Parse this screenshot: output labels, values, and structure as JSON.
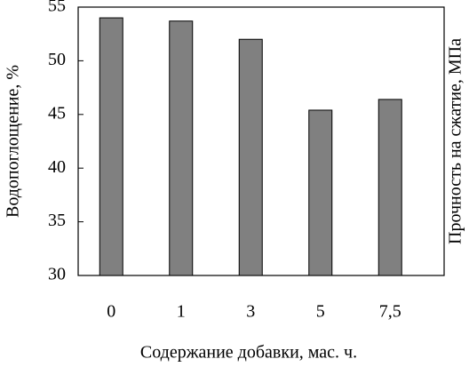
{
  "chart_data": {
    "type": "bar",
    "y_label": "Водопоглощение, %",
    "y2_label": "Прочность на сжатие, МПа",
    "x_label": "Содержание добавки, мас. ч.",
    "categories": [
      "0",
      "1",
      "3",
      "5",
      "7,5"
    ],
    "values": [
      54.0,
      53.7,
      52.0,
      45.4,
      46.4
    ],
    "color": "#808080",
    "ylim": [
      30,
      55
    ],
    "yticks": [
      30,
      35,
      40,
      45,
      50,
      55
    ],
    "grid": false
  }
}
